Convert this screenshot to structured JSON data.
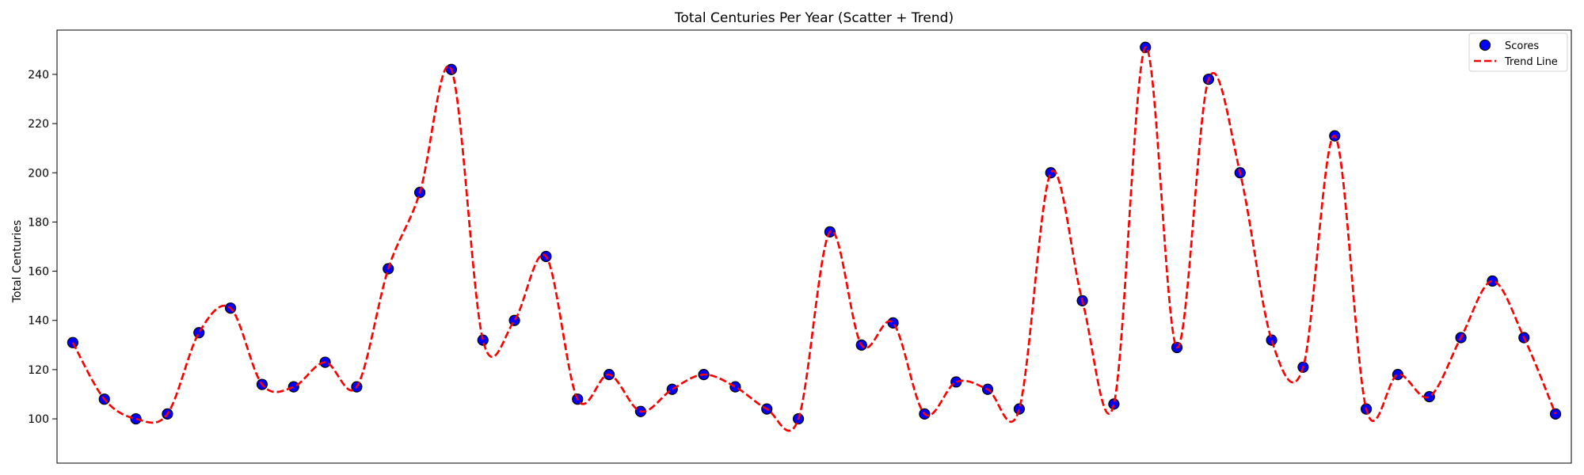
{
  "chart_data": {
    "type": "scatter",
    "title": "Total Centuries Per Year (Scatter + Trend)",
    "xlabel": "",
    "ylabel": "Total Centuries",
    "ylim": [
      82,
      258
    ],
    "xlim": [
      -0.5,
      47.5
    ],
    "y_ticks": [
      "100",
      "120",
      "140",
      "160",
      "180",
      "200",
      "220",
      "240"
    ],
    "x_ticks_shown": false,
    "grid": false,
    "legend_position": "top-right",
    "series": [
      {
        "name": "Scores",
        "kind": "scatter",
        "color": "#0000ff",
        "edge_color": "#000000",
        "x": [
          0,
          1,
          2,
          3,
          4,
          5,
          6,
          7,
          8,
          9,
          10,
          11,
          12,
          13,
          14,
          15,
          16,
          17,
          18,
          19,
          20,
          21,
          22,
          23,
          24,
          25,
          26,
          27,
          28,
          29,
          30,
          31,
          32,
          33,
          34,
          35,
          36,
          37,
          38,
          39,
          40,
          41,
          42,
          43,
          44,
          45,
          46,
          47
        ],
        "values": [
          131,
          108,
          100,
          102,
          135,
          145,
          114,
          113,
          123,
          113,
          161,
          192,
          242,
          132,
          140,
          166,
          108,
          118,
          103,
          112,
          118,
          113,
          104,
          100,
          176,
          130,
          139,
          102,
          115,
          112,
          104,
          200,
          148,
          106,
          251,
          129,
          238,
          200,
          132,
          121,
          215,
          104,
          118,
          109,
          133,
          156,
          133,
          102
        ]
      },
      {
        "name": "Trend Line",
        "kind": "line",
        "style": "dashed",
        "color": "#ff0000",
        "x": [
          0,
          1,
          2,
          3,
          4,
          5,
          6,
          7,
          8,
          9,
          10,
          11,
          12,
          13,
          14,
          15,
          16,
          17,
          18,
          19,
          20,
          21,
          22,
          23,
          24,
          25,
          26,
          27,
          28,
          29,
          30,
          31,
          32,
          33,
          34,
          35,
          36,
          37,
          38,
          39,
          40,
          41,
          42,
          43,
          44,
          45,
          46,
          47
        ],
        "values": [
          131,
          108,
          100,
          102,
          135,
          145,
          114,
          113,
          123,
          113,
          161,
          192,
          242,
          132,
          140,
          166,
          108,
          118,
          103,
          112,
          118,
          113,
          104,
          100,
          176,
          130,
          139,
          102,
          115,
          112,
          104,
          200,
          148,
          106,
          251,
          129,
          238,
          200,
          132,
          121,
          215,
          104,
          118,
          109,
          133,
          156,
          133,
          102
        ]
      }
    ]
  }
}
